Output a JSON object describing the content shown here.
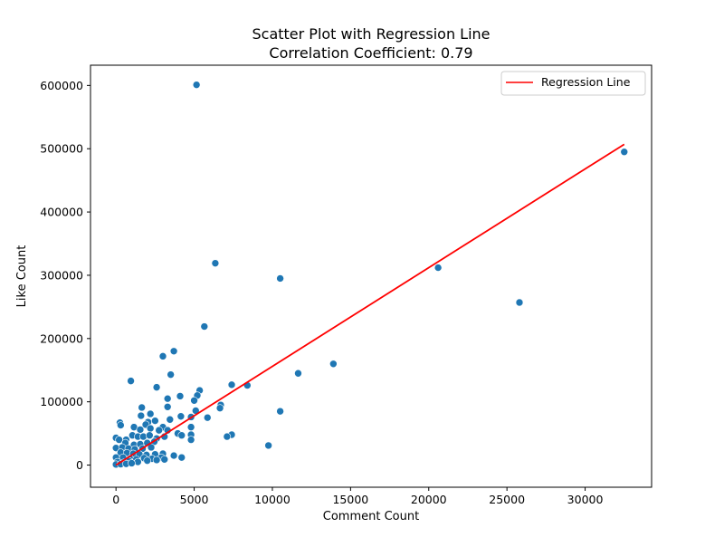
{
  "chart_data": {
    "type": "scatter",
    "title": "Scatter Plot with Regression Line",
    "subtitle": "Correlation Coefficient: 0.79",
    "xlabel": "Comment Count",
    "ylabel": "Like Count",
    "xlim": [
      -1630,
      34250
    ],
    "ylim": [
      -35000,
      632000
    ],
    "x_ticks": [
      0,
      5000,
      10000,
      15000,
      20000,
      25000,
      30000
    ],
    "x_tick_labels": [
      "0",
      "5000",
      "10000",
      "15000",
      "20000",
      "25000",
      "30000"
    ],
    "y_ticks": [
      0,
      100000,
      200000,
      300000,
      400000,
      500000,
      600000
    ],
    "y_tick_labels": [
      "0",
      "100000",
      "200000",
      "300000",
      "400000",
      "500000",
      "600000"
    ],
    "grid": false,
    "legend": {
      "position": "top-right",
      "entries": [
        "Regression Line"
      ]
    },
    "colors": {
      "points": "#1f77b4",
      "regression": "#ff0000"
    },
    "regression_line": {
      "x": [
        0,
        32500
      ],
      "y": [
        0,
        507000
      ]
    },
    "points": [
      [
        5150,
        601000
      ],
      [
        32500,
        495000
      ],
      [
        6350,
        319000
      ],
      [
        20600,
        312000
      ],
      [
        10500,
        295000
      ],
      [
        25800,
        257000
      ],
      [
        5650,
        219000
      ],
      [
        3700,
        180000
      ],
      [
        3000,
        172000
      ],
      [
        13900,
        160000
      ],
      [
        3500,
        143000
      ],
      [
        11650,
        145000
      ],
      [
        950,
        133000
      ],
      [
        7400,
        127000
      ],
      [
        8400,
        126000
      ],
      [
        2600,
        123000
      ],
      [
        5350,
        118000
      ],
      [
        5200,
        110000
      ],
      [
        4100,
        109000
      ],
      [
        3300,
        105000
      ],
      [
        5000,
        102000
      ],
      [
        6700,
        95000
      ],
      [
        6650,
        90000
      ],
      [
        3300,
        92000
      ],
      [
        1650,
        91000
      ],
      [
        5100,
        86000
      ],
      [
        10500,
        85000
      ],
      [
        2200,
        81000
      ],
      [
        1600,
        78000
      ],
      [
        4150,
        77000
      ],
      [
        4800,
        76000
      ],
      [
        5850,
        75000
      ],
      [
        3450,
        72000
      ],
      [
        2050,
        68000
      ],
      [
        2500,
        70000
      ],
      [
        1900,
        64000
      ],
      [
        3000,
        60000
      ],
      [
        4800,
        60000
      ],
      [
        1150,
        60000
      ],
      [
        2200,
        58000
      ],
      [
        250,
        67000
      ],
      [
        300,
        63000
      ],
      [
        1550,
        56000
      ],
      [
        2750,
        55000
      ],
      [
        3300,
        55000
      ],
      [
        3950,
        50000
      ],
      [
        7400,
        48000
      ],
      [
        7100,
        45000
      ],
      [
        4200,
        47000
      ],
      [
        4800,
        48000
      ],
      [
        4800,
        40000
      ],
      [
        0,
        43000
      ],
      [
        200,
        40000
      ],
      [
        650,
        40000
      ],
      [
        1050,
        47000
      ],
      [
        1400,
        45000
      ],
      [
        1750,
        45000
      ],
      [
        2150,
        47000
      ],
      [
        2600,
        42000
      ],
      [
        3100,
        45000
      ],
      [
        600,
        35000
      ],
      [
        1150,
        32000
      ],
      [
        1550,
        33000
      ],
      [
        2000,
        35000
      ],
      [
        2450,
        37000
      ],
      [
        0,
        27000
      ],
      [
        400,
        28000
      ],
      [
        800,
        26000
      ],
      [
        1200,
        25000
      ],
      [
        1700,
        26000
      ],
      [
        2250,
        28000
      ],
      [
        9750,
        31000
      ],
      [
        300,
        20000
      ],
      [
        700,
        19000
      ],
      [
        1100,
        18000
      ],
      [
        1500,
        17000
      ],
      [
        1950,
        16000
      ],
      [
        2500,
        17000
      ],
      [
        3000,
        18000
      ],
      [
        3700,
        15000
      ],
      [
        0,
        12000
      ],
      [
        450,
        12000
      ],
      [
        900,
        10000
      ],
      [
        1300,
        9000
      ],
      [
        1800,
        11000
      ],
      [
        2300,
        10000
      ],
      [
        2900,
        12000
      ],
      [
        4200,
        12000
      ],
      [
        100,
        5000
      ],
      [
        500,
        4000
      ],
      [
        850,
        6000
      ],
      [
        1400,
        5000
      ],
      [
        2000,
        7000
      ],
      [
        2600,
        8000
      ],
      [
        3100,
        9000
      ],
      [
        0,
        1000
      ],
      [
        300,
        1500
      ],
      [
        650,
        2000
      ],
      [
        1000,
        3000
      ]
    ]
  }
}
